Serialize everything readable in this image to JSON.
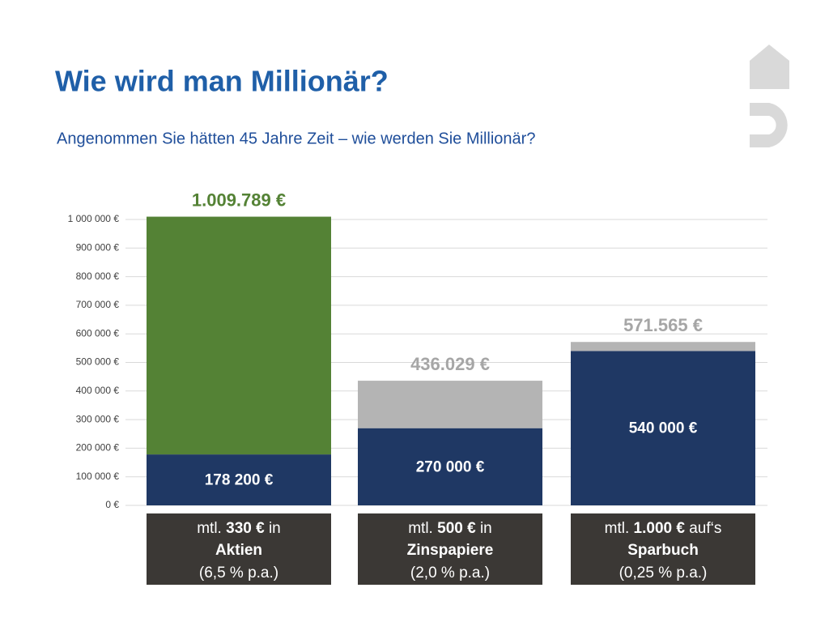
{
  "chart_data": {
    "type": "stacked_bar",
    "title": "Wie wird man Millionär?",
    "subtitle": "Angenommen Sie hätten 45 Jahre Zeit – wie werden Sie Millionär?",
    "categories": [
      "Aktien",
      "Zinspapiere",
      "Sparbuch"
    ],
    "category_details": [
      {
        "pre": "mtl. ",
        "amount": "330 €",
        "post": " in",
        "rate": "(6,5 % p.a.)"
      },
      {
        "pre": "mtl. ",
        "amount": "500 €",
        "post": " in",
        "rate": "(2,0 % p.a.)"
      },
      {
        "pre": "mtl. ",
        "amount": "1.000 €",
        "post": " auf‘s",
        "rate": "(0,25 % p.a.)"
      }
    ],
    "series": [
      {
        "color": "#1f3864",
        "values": [
          178200,
          270000,
          540000
        ],
        "value_labels": [
          "178 200 €",
          "270 000 €",
          "540 000 €"
        ]
      },
      {
        "colors": [
          "#548235",
          "#b4b4b4",
          "#b4b4b4"
        ],
        "values": [
          831589,
          166029,
          31565
        ]
      }
    ],
    "totals": {
      "values": [
        1009789,
        436029,
        571565
      ],
      "value_labels": [
        "1.009.789 €",
        "436.029 €",
        "571.565 €"
      ],
      "colors": [
        "#548235",
        "#a6a6a6",
        "#a6a6a6"
      ]
    },
    "ylim": [
      0,
      1000000
    ],
    "yticks": [
      {
        "value": 0,
        "label": "0 €"
      },
      {
        "value": 100000,
        "label": "100 000 €"
      },
      {
        "value": 200000,
        "label": "200 000 €"
      },
      {
        "value": 300000,
        "label": "300 000 €"
      },
      {
        "value": 400000,
        "label": "400 000 €"
      },
      {
        "value": 500000,
        "label": "500 000 €"
      },
      {
        "value": 600000,
        "label": "600 000 €"
      },
      {
        "value": 700000,
        "label": "700 000 €"
      },
      {
        "value": 800000,
        "label": "800 000 €"
      },
      {
        "value": 900000,
        "label": "900 000 €"
      },
      {
        "value": 1000000,
        "label": "1 000 000 €"
      }
    ],
    "grid": true
  }
}
